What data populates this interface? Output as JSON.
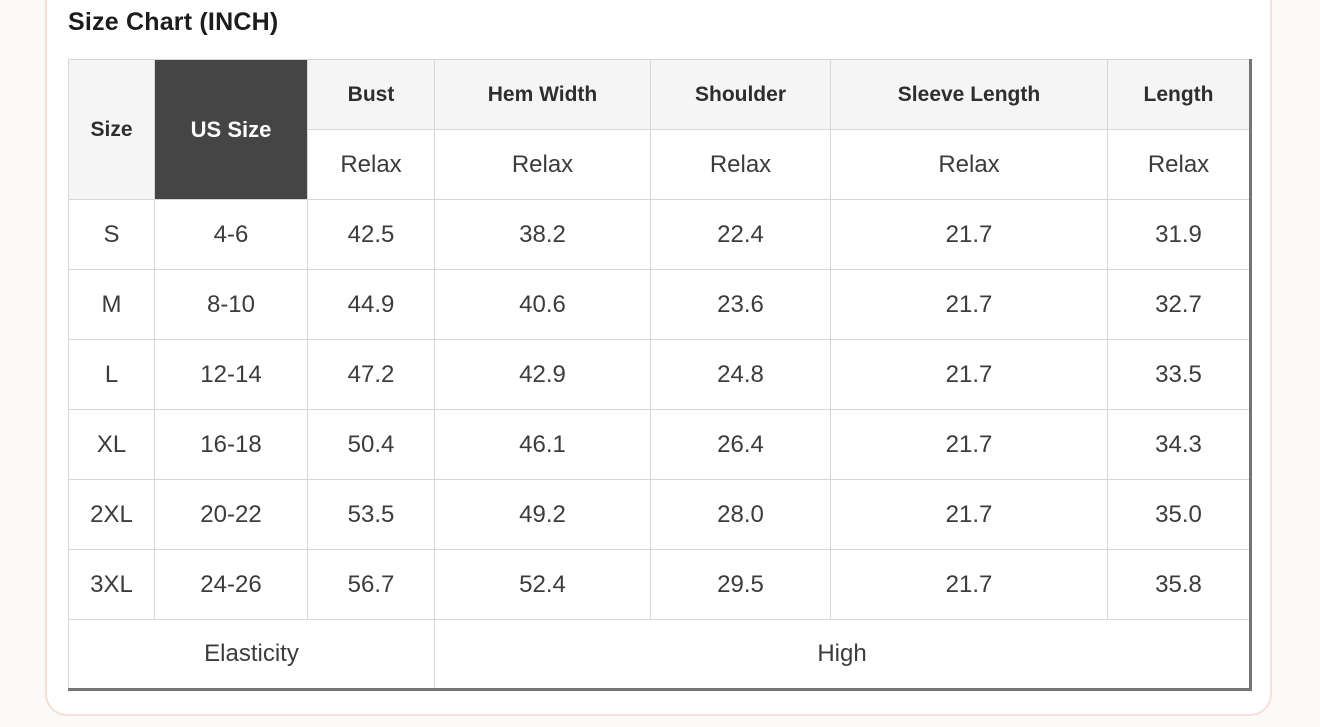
{
  "title": "Size Chart (INCH)",
  "colors": {
    "page_bg": "#fbfaf9",
    "card_border": "#f7e0d7",
    "header_light_bg": "#f5f5f5",
    "header_dark_bg": "#454545",
    "border_light": "#d6d6d6",
    "border_dark": "#757575"
  },
  "table": {
    "columns": {
      "size": "Size",
      "us_size": "US Size",
      "bust": "Bust",
      "hem_width": "Hem Width",
      "shoulder": "Shoulder",
      "sleeve_length": "Sleeve Length",
      "length": "Length"
    },
    "fit_row": [
      "Relax",
      "Relax",
      "Relax",
      "Relax",
      "Relax"
    ],
    "rows": [
      {
        "size": "S",
        "us_size": "4-6",
        "bust": "42.5",
        "hem_width": "38.2",
        "shoulder": "22.4",
        "sleeve_length": "21.7",
        "length": "31.9"
      },
      {
        "size": "M",
        "us_size": "8-10",
        "bust": "44.9",
        "hem_width": "40.6",
        "shoulder": "23.6",
        "sleeve_length": "21.7",
        "length": "32.7"
      },
      {
        "size": "L",
        "us_size": "12-14",
        "bust": "47.2",
        "hem_width": "42.9",
        "shoulder": "24.8",
        "sleeve_length": "21.7",
        "length": "33.5"
      },
      {
        "size": "XL",
        "us_size": "16-18",
        "bust": "50.4",
        "hem_width": "46.1",
        "shoulder": "26.4",
        "sleeve_length": "21.7",
        "length": "34.3"
      },
      {
        "size": "2XL",
        "us_size": "20-22",
        "bust": "53.5",
        "hem_width": "49.2",
        "shoulder": "28.0",
        "sleeve_length": "21.7",
        "length": "35.0"
      },
      {
        "size": "3XL",
        "us_size": "24-26",
        "bust": "56.7",
        "hem_width": "52.4",
        "shoulder": "29.5",
        "sleeve_length": "21.7",
        "length": "35.8"
      }
    ],
    "footer": {
      "label": "Elasticity",
      "value": "High"
    }
  }
}
